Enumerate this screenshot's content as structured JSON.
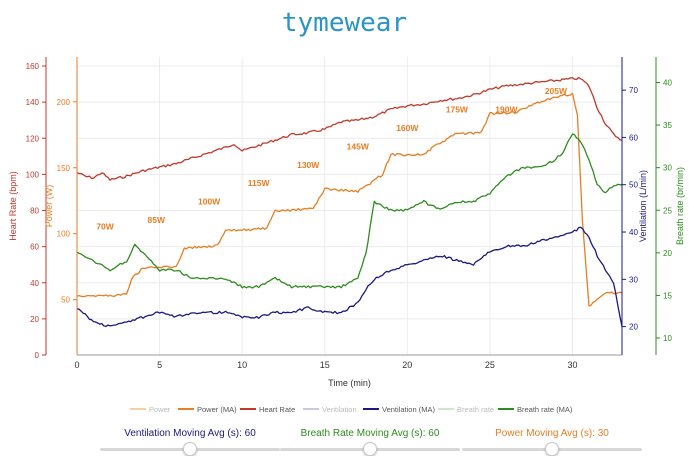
{
  "header": {
    "title": "tymewear"
  },
  "colors": {
    "heart_rate": "#c0392b",
    "power": "#e67e22",
    "ventilation": "#1a1a80",
    "breath_rate": "#2e8b1f",
    "title": "#2a93c7"
  },
  "chart_data": {
    "type": "line",
    "xlabel": "Time (min)",
    "x_ticks": [
      0,
      5,
      10,
      15,
      20,
      25,
      30
    ],
    "xlim": [
      0,
      33
    ],
    "axes": {
      "heart_rate": {
        "label": "Heart Rate (bpm)",
        "ticks": [
          0,
          20,
          40,
          60,
          80,
          100,
          120,
          140,
          160
        ],
        "range": [
          0,
          165
        ]
      },
      "power": {
        "label": "Power (W)",
        "ticks": [
          50,
          100,
          150,
          200
        ],
        "range": [
          8,
          234
        ]
      },
      "ventilation": {
        "label": "Ventilation (L/min)",
        "ticks": [
          20,
          30,
          40,
          50,
          60,
          70
        ],
        "range": [
          14,
          77
        ]
      },
      "breath_rate": {
        "label": "Breath rate (br/min)",
        "ticks": [
          10,
          15,
          20,
          25,
          30,
          35,
          40
        ],
        "range": [
          8,
          43
        ]
      }
    },
    "annotations": [
      {
        "text": "70W",
        "x": 1.7,
        "y": 103
      },
      {
        "text": "85W",
        "x": 4.8,
        "y": 108
      },
      {
        "text": "100W",
        "x": 8.0,
        "y": 122
      },
      {
        "text": "115W",
        "x": 11.0,
        "y": 136
      },
      {
        "text": "130W",
        "x": 14.0,
        "y": 150
      },
      {
        "text": "145W",
        "x": 17.0,
        "y": 164
      },
      {
        "text": "160W",
        "x": 20.0,
        "y": 178
      },
      {
        "text": "175W",
        "x": 23.0,
        "y": 192
      },
      {
        "text": "190W",
        "x": 26.0,
        "y": 192
      },
      {
        "text": "205W",
        "x": 29.0,
        "y": 206
      }
    ],
    "legend": {
      "placement": "bottom",
      "items": [
        {
          "label": "Power",
          "color": "#f5cfa7",
          "faded": true
        },
        {
          "label": "Power (MA)",
          "color": "#e67e22",
          "faded": false
        },
        {
          "label": "Heart Rate",
          "color": "#c0392b",
          "faded": false
        },
        {
          "label": "Ventilation",
          "color": "#c8c8e0",
          "faded": true
        },
        {
          "label": "Ventilation (MA)",
          "color": "#1a1a80",
          "faded": false
        },
        {
          "label": "Breath rate",
          "color": "#cfe6c9",
          "faded": true
        },
        {
          "label": "Breath rate (MA)",
          "color": "#2e8b1f",
          "faded": false
        }
      ]
    },
    "series": [
      {
        "name": "Heart Rate",
        "axis": "heart_rate",
        "color": "#c0392b",
        "x": [
          0,
          0.5,
          1,
          1.5,
          2,
          3,
          4,
          5,
          6,
          7,
          8,
          9,
          9.5,
          10,
          11,
          12,
          13,
          14,
          15,
          16,
          17,
          18,
          19,
          20,
          21,
          22,
          23,
          24,
          25,
          26,
          27,
          28,
          29,
          30,
          30.5,
          31,
          31.5,
          32,
          32.5,
          33
        ],
        "y": [
          101,
          99,
          98,
          101,
          97,
          99,
          102,
          104,
          106,
          109,
          112,
          115,
          117,
          113,
          116,
          119,
          122,
          123,
          125,
          129,
          130,
          132,
          136,
          138,
          139,
          141,
          142,
          144,
          147,
          149,
          150,
          151,
          152,
          153,
          153,
          149,
          137,
          128,
          122,
          119
        ]
      },
      {
        "name": "Power (MA)",
        "axis": "power",
        "color": "#e67e22",
        "x": [
          0,
          2,
          3,
          3.3,
          4,
          6,
          6.5,
          8.5,
          9,
          11.5,
          12,
          14.3,
          15,
          17,
          17.5,
          18.5,
          19,
          21,
          21.5,
          23,
          24,
          24.5,
          25,
          26.5,
          27,
          28,
          29.5,
          30,
          30.3,
          30.6,
          31,
          32,
          33
        ],
        "y": [
          53,
          53,
          54,
          66,
          74,
          75,
          89,
          91,
          102,
          104,
          117,
          119,
          134,
          132,
          136,
          145,
          160,
          160,
          165,
          176,
          176,
          177,
          191,
          192,
          194,
          200,
          205,
          206,
          190,
          110,
          45,
          55,
          55
        ]
      },
      {
        "name": "Ventilation (MA)",
        "axis": "ventilation",
        "color": "#1a1a80",
        "x": [
          0,
          1,
          2,
          3,
          4,
          5,
          6,
          7,
          8,
          9,
          10,
          11,
          12,
          13,
          14,
          15,
          16,
          17,
          17.5,
          18,
          19,
          20,
          21,
          22,
          23,
          24,
          25,
          26,
          27,
          28,
          29,
          30,
          30.5,
          31,
          31.5,
          32,
          32.5,
          33
        ],
        "y": [
          24,
          21,
          20,
          21,
          22,
          23,
          22,
          23,
          23,
          23,
          22,
          22,
          23,
          23,
          24,
          23,
          23,
          25,
          28,
          30,
          32,
          33,
          34,
          35,
          34,
          33,
          36,
          37,
          37,
          38,
          39,
          40,
          41,
          39,
          35,
          32,
          29,
          20
        ]
      },
      {
        "name": "Breath rate (MA)",
        "axis": "breath_rate",
        "color": "#2e8b1f",
        "x": [
          0,
          1,
          2,
          3,
          3.5,
          4,
          5,
          6,
          7,
          8,
          9,
          10,
          11,
          12,
          13,
          14,
          15,
          16,
          17,
          17.5,
          18,
          19,
          20,
          21,
          22,
          23,
          24,
          25,
          26,
          27,
          28,
          29,
          29.5,
          30,
          30.5,
          31,
          31.5,
          32,
          32.5,
          33
        ],
        "y": [
          20,
          19,
          18,
          19,
          21,
          20,
          18,
          18,
          17,
          17,
          17,
          16,
          16,
          17,
          16,
          16,
          16,
          16,
          17,
          20,
          26,
          25,
          25,
          26,
          25,
          26,
          26,
          27,
          29,
          30,
          30,
          31,
          32,
          34,
          33,
          31,
          28,
          27,
          28,
          28
        ]
      }
    ]
  },
  "sliders": [
    {
      "label": "Ventilation Moving Avg (s): 60",
      "color": "#1a1a80",
      "value": 60,
      "min": 0,
      "max": 120
    },
    {
      "label": "Breath Rate Moving Avg (s): 60",
      "color": "#2e8b1f",
      "value": 60,
      "min": 0,
      "max": 120
    },
    {
      "label": "Power Moving Avg (s): 30",
      "color": "#e67e22",
      "value": 30,
      "min": 0,
      "max": 60
    }
  ]
}
